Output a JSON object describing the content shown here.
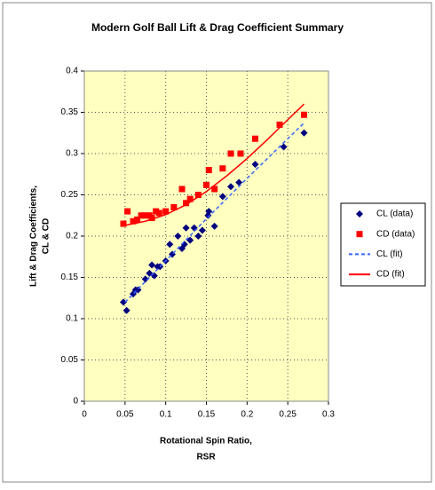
{
  "chart_data": {
    "type": "scatter",
    "title": "Modern Golf Ball Lift & Drag Coefficient Summary",
    "xlabel": [
      "Rotational Spin Ratio,",
      "RSR"
    ],
    "ylabel": [
      "Lift & Drag Coefficients,",
      "CL & CD"
    ],
    "xlim": [
      0,
      0.3
    ],
    "xticks": [
      0,
      0.05,
      0.1,
      0.15,
      0.2,
      0.25,
      0.3
    ],
    "ylim": [
      0,
      0.4
    ],
    "yticks": [
      0,
      0.05,
      0.1,
      0.15,
      0.2,
      0.25,
      0.3,
      0.35,
      0.4
    ],
    "grid": true,
    "legend": "right",
    "series": [
      {
        "name": "CL (data)",
        "color": "#000080",
        "mark": "diamond",
        "x": [
          0.048,
          0.052,
          0.06,
          0.063,
          0.066,
          0.075,
          0.08,
          0.083,
          0.086,
          0.09,
          0.093,
          0.1,
          0.105,
          0.108,
          0.115,
          0.12,
          0.123,
          0.125,
          0.13,
          0.135,
          0.14,
          0.145,
          0.152,
          0.153,
          0.16,
          0.17,
          0.18,
          0.19,
          0.21,
          0.245,
          0.27
        ],
        "values": [
          0.12,
          0.11,
          0.13,
          0.135,
          0.135,
          0.148,
          0.155,
          0.165,
          0.152,
          0.163,
          0.163,
          0.17,
          0.19,
          0.178,
          0.2,
          0.185,
          0.19,
          0.21,
          0.195,
          0.21,
          0.2,
          0.207,
          0.225,
          0.23,
          0.212,
          0.248,
          0.26,
          0.265,
          0.287,
          0.308,
          0.325
        ]
      },
      {
        "name": "CD (data)",
        "color": "#ff0000",
        "mark": "square",
        "x": [
          0.048,
          0.053,
          0.06,
          0.065,
          0.07,
          0.075,
          0.08,
          0.083,
          0.088,
          0.092,
          0.1,
          0.11,
          0.12,
          0.125,
          0.13,
          0.14,
          0.15,
          0.153,
          0.16,
          0.17,
          0.18,
          0.192,
          0.21,
          0.24,
          0.27
        ],
        "values": [
          0.215,
          0.23,
          0.218,
          0.22,
          0.225,
          0.225,
          0.225,
          0.222,
          0.23,
          0.228,
          0.23,
          0.235,
          0.257,
          0.24,
          0.245,
          0.25,
          0.262,
          0.28,
          0.257,
          0.282,
          0.3,
          0.3,
          0.318,
          0.335,
          0.347
        ]
      },
      {
        "name": "CL (fit)",
        "color": "#3366ff",
        "mark": "dashed",
        "x": [
          0.05,
          0.1,
          0.15,
          0.2,
          0.25,
          0.27
        ],
        "values": [
          0.12,
          0.17,
          0.221,
          0.27,
          0.318,
          0.337
        ]
      },
      {
        "name": "CD (fit)",
        "color": "#ff0000",
        "mark": "solid",
        "x": [
          0.05,
          0.075,
          0.1,
          0.125,
          0.15,
          0.175,
          0.2,
          0.225,
          0.25,
          0.27
        ],
        "values": [
          0.213,
          0.218,
          0.226,
          0.238,
          0.254,
          0.273,
          0.294,
          0.317,
          0.341,
          0.36
        ]
      }
    ]
  }
}
